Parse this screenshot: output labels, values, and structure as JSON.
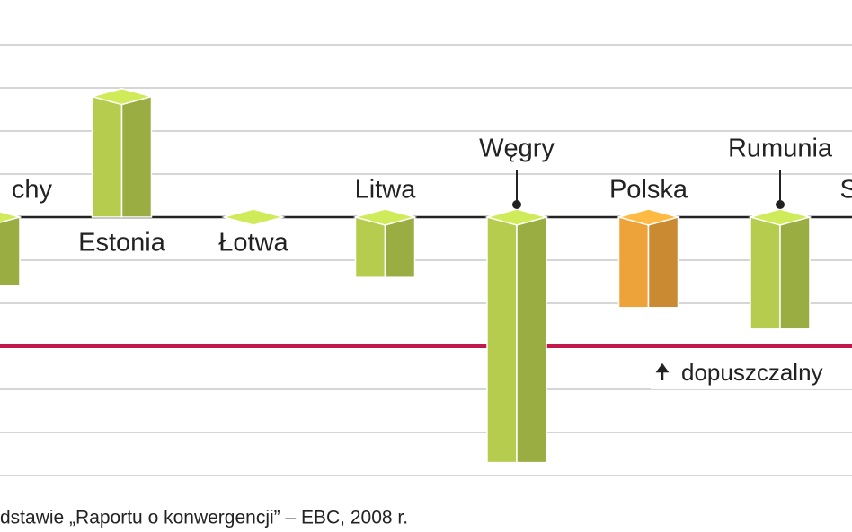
{
  "chart_data": {
    "type": "bar",
    "categories": [
      "chy",
      "Estonia",
      "Łotwa",
      "Litwa",
      "Węgry",
      "Polska",
      "Rumunia",
      "S"
    ],
    "values": [
      -1.6,
      2.8,
      0,
      -1.4,
      -5.7,
      -2.1,
      -2.6,
      null
    ],
    "colors": [
      "#b5cc4e",
      "#b5cc4e",
      "#b5cc4e",
      "#b5cc4e",
      "#b5cc4e",
      "#eda23a",
      "#b5cc4e",
      "#b5cc4e"
    ],
    "ylim": [
      -6,
      5
    ],
    "yticks": [
      -6,
      -5,
      -4,
      -3,
      -2,
      -1,
      0,
      1,
      2,
      3,
      4
    ],
    "grid": true,
    "reference_line": {
      "value": -3,
      "label": "dopuszczalny",
      "color": "#c2184c"
    },
    "source": "dstawie „Raportu o konwergencji” – EBC, 2008 r."
  }
}
